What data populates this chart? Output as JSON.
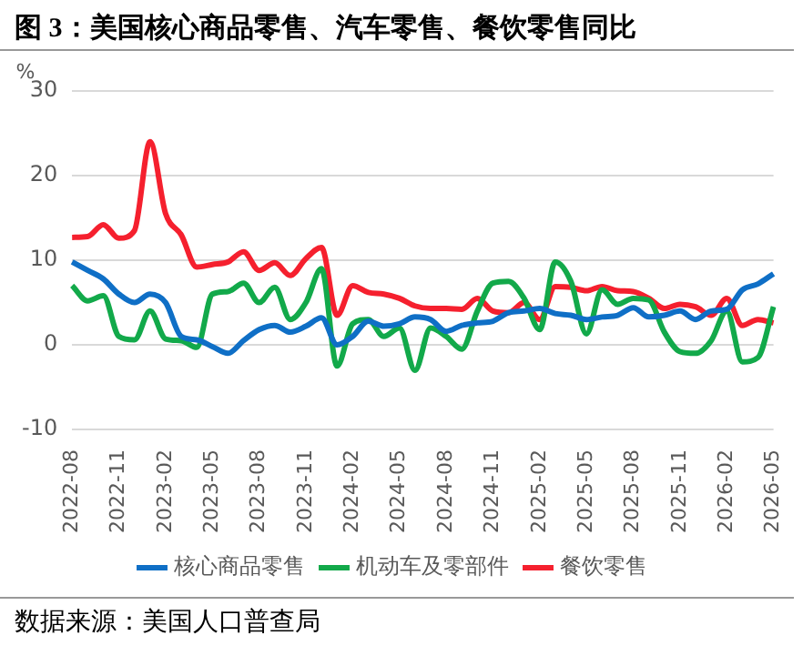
{
  "chart_data": {
    "type": "line",
    "title": "图 3：美国核心商品零售、汽车零售、餐饮零售同比",
    "ylabel": "%",
    "categories": [
      "2022-08",
      null,
      null,
      "2022-11",
      null,
      null,
      "2023-02",
      null,
      null,
      "2023-05",
      null,
      null,
      "2023-08",
      null,
      null,
      "2023-11",
      null,
      null,
      "2024-02",
      null,
      null,
      "2024-05",
      null,
      null,
      "2024-08",
      null,
      null,
      "2024-11",
      null,
      null,
      "2025-02",
      null,
      null,
      "2025-05",
      null,
      null,
      "2025-08",
      null,
      null,
      "2025-11",
      null,
      null,
      "2026-02",
      null,
      null,
      "2026-05"
    ],
    "series": [
      {
        "name": "核心商品零售",
        "color": "#0f6fc6",
        "values": [
          9.8,
          8.8,
          7.8,
          6,
          5,
          6,
          5,
          1,
          0.6,
          -0.2,
          -1,
          0.5,
          1.8,
          2.3,
          1.5,
          2.2,
          3.2,
          0,
          1,
          2.8,
          2.2,
          2.5,
          3.3,
          3,
          1.6,
          2.3,
          2.6,
          2.8,
          3.8,
          4,
          4.3,
          3.7,
          3.5,
          3,
          3.3,
          3.5,
          4.4,
          3.3,
          3.5,
          4,
          3,
          4,
          4.2,
          6.5,
          7.2,
          8.4
        ]
      },
      {
        "name": "机动车及零部件",
        "color": "#12a94a",
        "values": [
          7,
          5.2,
          5.8,
          1,
          0.6,
          4,
          0.7,
          0.5,
          -0.3,
          6,
          6.3,
          7.3,
          5,
          6.8,
          3,
          5,
          9,
          -2.5,
          2.5,
          3,
          1,
          2,
          -3,
          2,
          1,
          -0.5,
          4,
          7.3,
          7.5,
          5.5,
          1.8,
          9.8,
          7.5,
          1.3,
          6.5,
          4.8,
          5.5,
          5.3,
          1.5,
          -0.8,
          -1,
          0.5,
          4,
          -2,
          -1.5,
          4.5
        ]
      },
      {
        "name": "餐饮零售",
        "color": "#f5202e",
        "values": [
          12.7,
          12.8,
          14.2,
          12.6,
          13.5,
          24,
          15.5,
          13,
          9.2,
          9.5,
          9.8,
          11,
          8.8,
          9.7,
          8.2,
          10.2,
          11.5,
          3.5,
          7,
          6.2,
          6,
          5.5,
          4.6,
          4.3,
          4.3,
          4.2,
          5.5,
          4,
          3.8,
          5,
          3,
          6.9,
          6.8,
          6.4,
          6.9,
          6.4,
          6.3,
          5.5,
          4.3,
          4.8,
          4.5,
          3.5,
          5.5,
          2.3,
          3,
          2.6
        ]
      }
    ],
    "ylim": [
      -10,
      30
    ],
    "yticks": [
      -10,
      0,
      10,
      20,
      30
    ],
    "grid": "y",
    "legend": "bottom",
    "annotations": [
      "数据来源：美国人口普查局"
    ]
  }
}
